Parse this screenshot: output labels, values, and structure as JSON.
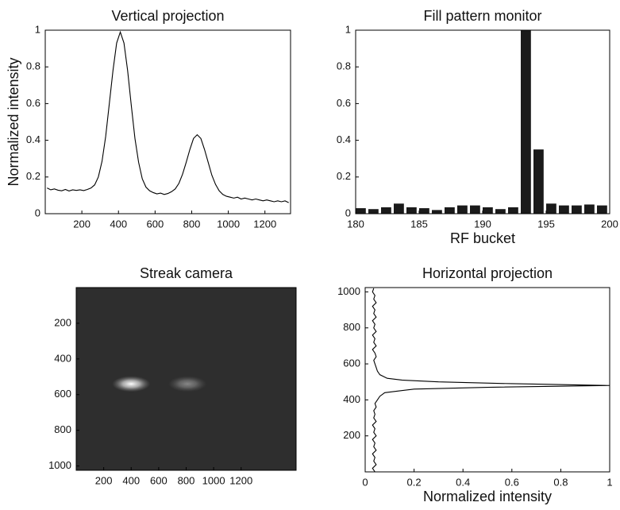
{
  "chart_data": [
    {
      "type": "line",
      "title": "Vertical projection",
      "ylabel": "Normalized intensity",
      "color": "#000000",
      "x": [
        10,
        30,
        50,
        70,
        90,
        110,
        130,
        150,
        170,
        190,
        210,
        230,
        250,
        270,
        290,
        310,
        330,
        350,
        370,
        390,
        410,
        430,
        450,
        470,
        490,
        510,
        530,
        550,
        570,
        590,
        610,
        630,
        650,
        670,
        690,
        710,
        730,
        750,
        770,
        790,
        810,
        830,
        850,
        870,
        890,
        910,
        930,
        950,
        970,
        990,
        1010,
        1030,
        1050,
        1070,
        1090,
        1110,
        1130,
        1150,
        1170,
        1190,
        1210,
        1230,
        1250,
        1270,
        1290,
        1310,
        1330
      ],
      "values": [
        0.14,
        0.13,
        0.135,
        0.128,
        0.125,
        0.132,
        0.124,
        0.13,
        0.127,
        0.13,
        0.126,
        0.132,
        0.14,
        0.157,
        0.2,
        0.285,
        0.42,
        0.6,
        0.78,
        0.93,
        0.99,
        0.93,
        0.78,
        0.59,
        0.41,
        0.28,
        0.19,
        0.145,
        0.125,
        0.115,
        0.108,
        0.112,
        0.105,
        0.11,
        0.12,
        0.135,
        0.165,
        0.215,
        0.28,
        0.35,
        0.41,
        0.43,
        0.41,
        0.35,
        0.28,
        0.21,
        0.16,
        0.125,
        0.105,
        0.095,
        0.09,
        0.085,
        0.09,
        0.08,
        0.085,
        0.08,
        0.075,
        0.08,
        0.075,
        0.07,
        0.075,
        0.07,
        0.065,
        0.07,
        0.065,
        0.07,
        0.06
      ],
      "xlim": [
        0,
        1340
      ],
      "xticks": [
        200,
        400,
        600,
        800,
        1000,
        1200
      ],
      "ylim": [
        0,
        1
      ],
      "yticks": [
        0,
        0.2,
        0.4,
        0.6,
        0.8,
        1
      ]
    },
    {
      "type": "bar",
      "title": "Fill pattern monitor",
      "xlabel": "RF bucket",
      "color": "#1a1a1a",
      "x": [
        180,
        181,
        182,
        183,
        184,
        185,
        186,
        187,
        188,
        189,
        190,
        191,
        192,
        193,
        194,
        195,
        196,
        197,
        198,
        199
      ],
      "values": [
        0.03,
        0.025,
        0.035,
        0.055,
        0.035,
        0.03,
        0.02,
        0.035,
        0.045,
        0.045,
        0.035,
        0.025,
        0.035,
        1,
        0.35,
        0.055,
        0.045,
        0.045,
        0.05,
        0.045
      ],
      "xlim": [
        180,
        200
      ],
      "xticks": [
        180,
        185,
        190,
        195,
        200
      ],
      "ylim": [
        0,
        1
      ],
      "yticks": [
        0,
        0.2,
        0.4,
        0.6,
        0.8,
        1
      ]
    },
    {
      "type": "image",
      "title": "Streak camera",
      "background": "#2e2e2e",
      "spots": [
        {
          "x": 400,
          "y": 540,
          "intensity": 1
        },
        {
          "x": 810,
          "y": 540,
          "intensity": 0.43
        }
      ],
      "xlim": [
        0,
        1600
      ],
      "xticks": [
        200,
        400,
        600,
        800,
        1000,
        1200
      ],
      "ylim": [
        1024,
        0
      ],
      "yticks": [
        200,
        400,
        600,
        800,
        1000
      ]
    },
    {
      "type": "line",
      "title": "Horizontal projection",
      "xlabel": "Normalized intensity",
      "color": "#000000",
      "y": [
        0,
        20,
        40,
        60,
        80,
        100,
        120,
        140,
        160,
        180,
        200,
        220,
        240,
        260,
        280,
        300,
        320,
        340,
        360,
        380,
        400,
        420,
        440,
        460,
        470,
        480,
        490,
        500,
        510,
        520,
        540,
        560,
        580,
        600,
        620,
        640,
        660,
        680,
        700,
        720,
        740,
        760,
        780,
        800,
        820,
        840,
        860,
        880,
        900,
        920,
        940,
        960,
        980,
        1000,
        1020
      ],
      "values": [
        0.04,
        0.03,
        0.045,
        0.035,
        0.04,
        0.03,
        0.045,
        0.035,
        0.04,
        0.03,
        0.045,
        0.035,
        0.04,
        0.03,
        0.045,
        0.035,
        0.04,
        0.035,
        0.045,
        0.04,
        0.05,
        0.06,
        0.08,
        0.2,
        0.5,
        1,
        0.6,
        0.3,
        0.15,
        0.09,
        0.06,
        0.05,
        0.045,
        0.04,
        0.035,
        0.045,
        0.04,
        0.03,
        0.045,
        0.035,
        0.04,
        0.03,
        0.045,
        0.035,
        0.04,
        0.03,
        0.045,
        0.035,
        0.04,
        0.03,
        0.045,
        0.035,
        0.04,
        0.03,
        0.035
      ],
      "xlim": [
        0,
        1
      ],
      "xticks": [
        0,
        0.2,
        0.4,
        0.6,
        0.8,
        1
      ],
      "ylim": [
        0,
        1024
      ],
      "yticks": [
        200,
        400,
        600,
        800,
        1000
      ]
    }
  ]
}
